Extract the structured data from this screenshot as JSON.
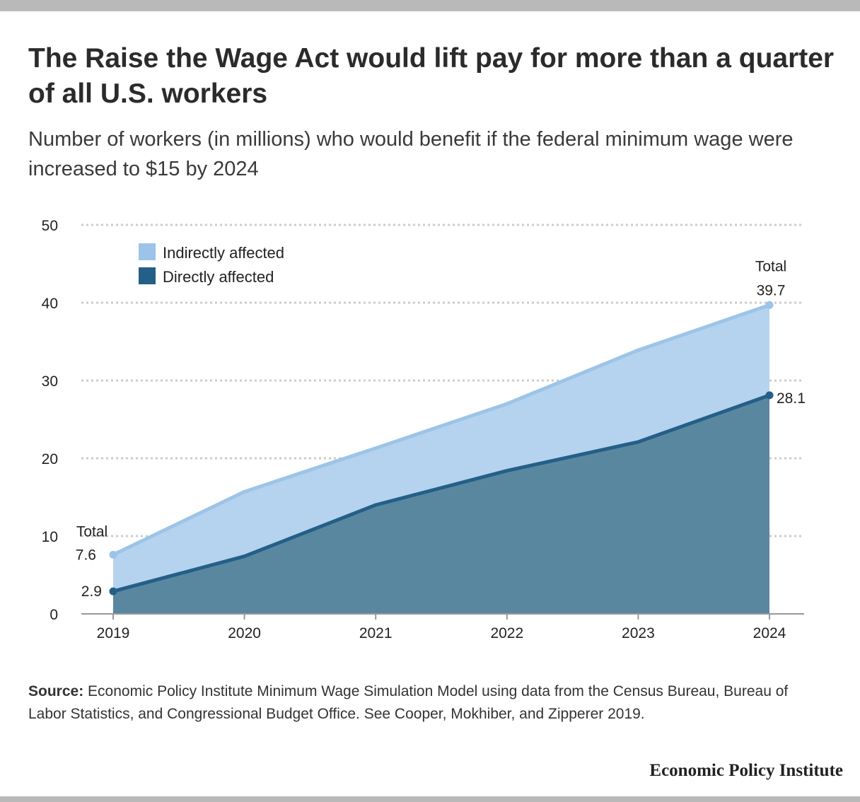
{
  "title": "The Raise the Wage Act would lift pay for more than a quarter of all U.S. workers",
  "subtitle": "Number of workers (in millions) who would benefit if the federal minimum wage were increased to $15 by 2024",
  "source_label": "Source:",
  "source_text": "Economic Policy Institute Minimum Wage Simulation Model using data from the Census Bureau, Bureau of Labor Statistics, and Congressional Budget Office. See Cooper, Mokhiber, and Zipperer 2019.",
  "brand": "Economic Policy Institute",
  "colors": {
    "indirect_fill": "#b5d3ee",
    "indirect_line": "#9cc4e8",
    "direct_fill": "#5a87a0",
    "direct_line": "#245f87",
    "grid": "#cccccc"
  },
  "chart_data": {
    "type": "area",
    "x": [
      "2019",
      "2020",
      "2021",
      "2022",
      "2023",
      "2024"
    ],
    "ylim": [
      0,
      50
    ],
    "yticks": [
      "0",
      "10",
      "20",
      "30",
      "40",
      "50"
    ],
    "stacked_totals": true,
    "grid": true,
    "legend_position": "top-left",
    "series": [
      {
        "name": "Indirectly affected",
        "totals": [
          7.6,
          15.7,
          21.3,
          27.0,
          33.9,
          39.7
        ]
      },
      {
        "name": "Directly affected",
        "values": [
          2.9,
          7.4,
          14.0,
          18.4,
          22.1,
          28.1
        ]
      }
    ],
    "annotations": {
      "start_total_label": "Total",
      "start_total_value": "7.6",
      "start_direct_value": "2.9",
      "end_total_label": "Total",
      "end_total_value": "39.7",
      "end_direct_value": "28.1"
    }
  }
}
